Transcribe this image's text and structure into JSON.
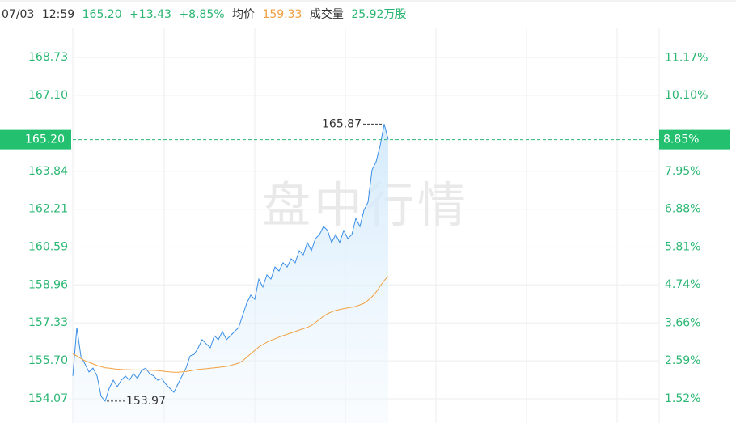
{
  "header": {
    "date": "07/03",
    "time": "12:59",
    "price": "165.20",
    "change": "+13.43",
    "change_pct": "+8.85%",
    "avg_label": "均价",
    "avg": "159.33",
    "volume_label": "成交量",
    "volume": "25.92万股"
  },
  "chart_data": {
    "type": "line",
    "watermark": "盘中行情",
    "xlim": [
      0,
      145
    ],
    "ylim": [
      153.03,
      169.98
    ],
    "y2lim": [
      0.83,
      12.0
    ],
    "yticks": [
      168.73,
      {
        "value": 167.1,
        "label": "167.10"
      },
      163.84,
      162.21,
      160.59,
      158.96,
      157.33,
      {
        "value": 155.7,
        "label": "155.70"
      },
      154.07
    ],
    "y2ticks": [
      {
        "value": 11.17,
        "label": "11.17%"
      },
      {
        "value": 10.1,
        "label": "10.10%"
      },
      {
        "value": 7.95,
        "label": "7.95%"
      },
      {
        "value": 6.88,
        "label": "6.88%"
      },
      {
        "value": 5.81,
        "label": "5.81%"
      },
      {
        "value": 4.74,
        "label": "4.74%"
      },
      {
        "value": 3.66,
        "label": "3.66%"
      },
      {
        "value": 2.59,
        "label": "2.59%"
      },
      {
        "value": 1.52,
        "label": "1.52%"
      }
    ],
    "last_price_label": {
      "value": 165.2,
      "label": "165.20"
    },
    "last_pct_label": {
      "value": 8.85,
      "label": "8.85%"
    },
    "grid": true,
    "series": [
      {
        "name": "price",
        "color": "#3a8ee6",
        "values": [
          155.05,
          157.13,
          155.91,
          155.57,
          155.22,
          155.39,
          155.05,
          154.18,
          153.97,
          154.52,
          154.87,
          154.59,
          154.87,
          155.05,
          154.87,
          155.15,
          154.94,
          155.29,
          155.39,
          155.15,
          155.05,
          154.87,
          154.94,
          154.7,
          154.52,
          154.35,
          154.7,
          155.05,
          155.39,
          155.91,
          155.98,
          156.26,
          156.61,
          156.43,
          156.26,
          156.78,
          156.61,
          156.96,
          156.61,
          156.78,
          156.96,
          157.13,
          157.65,
          158.17,
          158.52,
          158.34,
          159.21,
          158.87,
          159.39,
          159.21,
          159.73,
          159.56,
          159.91,
          159.73,
          160.08,
          159.91,
          160.43,
          160.25,
          160.78,
          160.43,
          160.95,
          161.12,
          161.47,
          161.3,
          160.78,
          161.12,
          160.78,
          161.3,
          160.95,
          161.12,
          161.82,
          161.47,
          162.17,
          162.51,
          163.9,
          164.25,
          164.94,
          165.87,
          165.2
        ]
      },
      {
        "name": "avg",
        "color": "#f0a040",
        "values": [
          156.0,
          155.91,
          155.8,
          155.7,
          155.64,
          155.57,
          155.5,
          155.45,
          155.4,
          155.39,
          155.36,
          155.34,
          155.33,
          155.32,
          155.32,
          155.31,
          155.31,
          155.3,
          155.3,
          155.29,
          155.29,
          155.28,
          155.26,
          155.24,
          155.22,
          155.21,
          155.21,
          155.22,
          155.24,
          155.27,
          155.3,
          155.33,
          155.35,
          155.36,
          155.38,
          155.4,
          155.42,
          155.44,
          155.46,
          155.5,
          155.55,
          155.6,
          155.7,
          155.85,
          156.0,
          156.15,
          156.3,
          156.4,
          156.5,
          156.58,
          156.65,
          156.72,
          156.78,
          156.84,
          156.9,
          156.96,
          157.02,
          157.08,
          157.14,
          157.22,
          157.35,
          157.48,
          157.62,
          157.72,
          157.8,
          157.86,
          157.9,
          157.94,
          157.97,
          158.0,
          158.04,
          158.1,
          158.17,
          158.3,
          158.45,
          158.65,
          158.9,
          159.15,
          159.33
        ]
      }
    ]
  }
}
